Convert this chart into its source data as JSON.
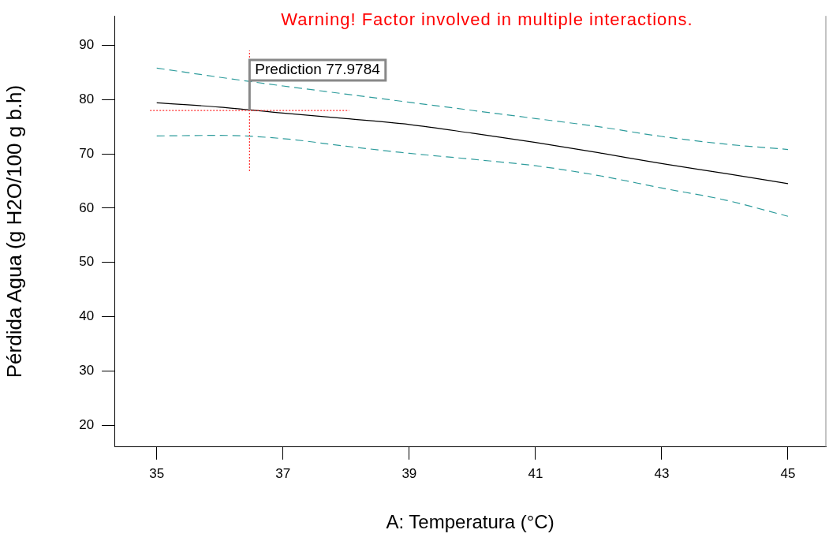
{
  "chart_data": {
    "type": "line",
    "title": "Warning! Factor involved in multiple interactions.",
    "xlabel": "A: Temperatura (°C)",
    "ylabel": "Pérdida Agua (g H2O/100 g b.h)",
    "x": [
      35,
      36,
      37,
      38,
      39,
      40,
      41,
      42,
      43,
      44,
      45
    ],
    "series": [
      {
        "color": "#000000",
        "line_style": "solid",
        "values": [
          79.4,
          78.6,
          77.5,
          76.5,
          75.4,
          73.8,
          72.1,
          70.2,
          68.2,
          66.4,
          64.5
        ]
      },
      {
        "color": "#2e9c9c",
        "line_style": "dashed",
        "values": [
          85.8,
          84.1,
          82.5,
          81.0,
          79.5,
          78.0,
          76.5,
          75.0,
          73.2,
          71.8,
          70.8
        ]
      },
      {
        "color": "#2e9c9c",
        "line_style": "dashed",
        "values": [
          73.3,
          73.4,
          72.8,
          71.4,
          70.1,
          69.0,
          67.8,
          66.0,
          63.7,
          61.5,
          58.5
        ]
      }
    ],
    "xlim": [
      34.33,
      45.6
    ],
    "xticks": [
      35,
      37,
      39,
      41,
      43,
      45
    ],
    "ylim": [
      16,
      95.4
    ],
    "yticks": [
      20,
      30,
      40,
      50,
      60,
      70,
      80,
      90
    ],
    "ref_lines": [
      {
        "axis": "x",
        "value": 36.47,
        "color": "#ff3030",
        "line_style": "dotted"
      },
      {
        "axis": "y",
        "value": 77.98,
        "color": "#ff3030",
        "line_style": "dotted"
      }
    ],
    "annotations": [
      {
        "text": "Prediction 77.9784",
        "x": 36.47,
        "y": 77.98
      }
    ],
    "grid": false,
    "legend": false,
    "marker": "none"
  }
}
